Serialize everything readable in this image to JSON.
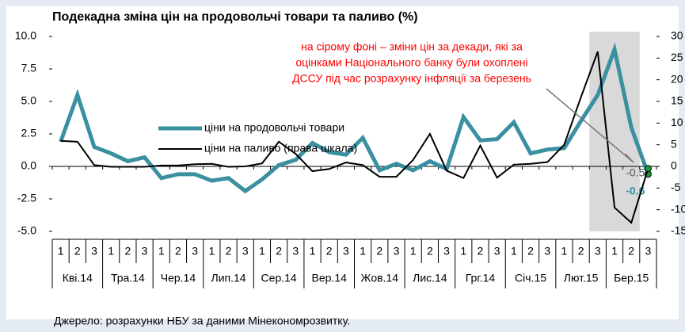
{
  "chart_data": {
    "type": "line",
    "title": "Подекадна зміна цін на продовольчі товари та паливо (%)",
    "annotation": [
      "на сірому фоні – зміни цін за декади, які за",
      "оцінками Національного банку були охоплені",
      "ДССУ під час розрахунку інфляції за березень"
    ],
    "source": "Джерело: розрахунки НБУ за даними Мінекономрозвитку.",
    "categories": [
      "1",
      "2",
      "3",
      "1",
      "2",
      "3",
      "1",
      "2",
      "3",
      "1",
      "2",
      "3",
      "1",
      "2",
      "3",
      "1",
      "2",
      "3",
      "1",
      "2",
      "3",
      "1",
      "2",
      "3",
      "1",
      "2",
      "3",
      "1",
      "2",
      "3",
      "1",
      "2",
      "3",
      "1",
      "2",
      "3"
    ],
    "month_groups": [
      "Кві.14",
      "Тра.14",
      "Чер.14",
      "Лип.14",
      "Сер.14",
      "Вер.14",
      "Жов.14",
      "Лис.14",
      "Грг.14",
      "Січ.15",
      "Лют.15",
      "Бер.15"
    ],
    "shaded_categories": [
      32,
      34
    ],
    "series": [
      {
        "name": "ціни на продовольчі товари",
        "color": "#3a8fa0",
        "values": [
          1.9,
          5.5,
          1.5,
          1.0,
          0.4,
          0.7,
          -0.9,
          -0.6,
          -0.6,
          -1.1,
          -0.9,
          -1.9,
          -1.0,
          0.1,
          0.5,
          1.8,
          1.1,
          0.9,
          2.2,
          -0.3,
          0.2,
          -0.3,
          0.4,
          -0.2,
          3.8,
          2.0,
          2.1,
          3.4,
          1.0,
          1.3,
          1.4,
          3.5,
          5.5,
          9.0,
          3.0,
          -0.6
        ]
      },
      {
        "name": "ціни на паливо (права шкала)",
        "color": "#000000",
        "axis": "y2",
        "values": [
          5.9,
          5.7,
          0.3,
          -0.1,
          -0.1,
          -0.1,
          0.2,
          0.2,
          0.5,
          0.6,
          -0.1,
          0.0,
          0.7,
          5.7,
          2.9,
          -1.1,
          -0.6,
          0.9,
          0.3,
          -2.4,
          -2.4,
          1.5,
          7.5,
          -1.0,
          -2.7,
          4.8,
          -2.6,
          0.4,
          0.6,
          1.0,
          5.0,
          16.0,
          26.5,
          -9.5,
          -13.0,
          -0.5
        ]
      }
    ],
    "ylim": [
      -5,
      10
    ],
    "yticks": [
      {
        "value": -5,
        "label": "-5.0"
      },
      {
        "value": -2.5,
        "label": "-2.5"
      },
      {
        "value": 0,
        "label": "0.0"
      },
      {
        "value": 2.5,
        "label": "2.5"
      },
      {
        "value": 5,
        "label": "5.0"
      },
      {
        "value": 7.5,
        "label": "7.5"
      },
      {
        "value": 10,
        "label": "10.0"
      }
    ],
    "y2lim": [
      -15,
      30
    ],
    "y2ticks": [
      -15,
      -10,
      -5,
      0,
      5,
      10,
      15,
      20,
      25,
      30
    ]
  }
}
